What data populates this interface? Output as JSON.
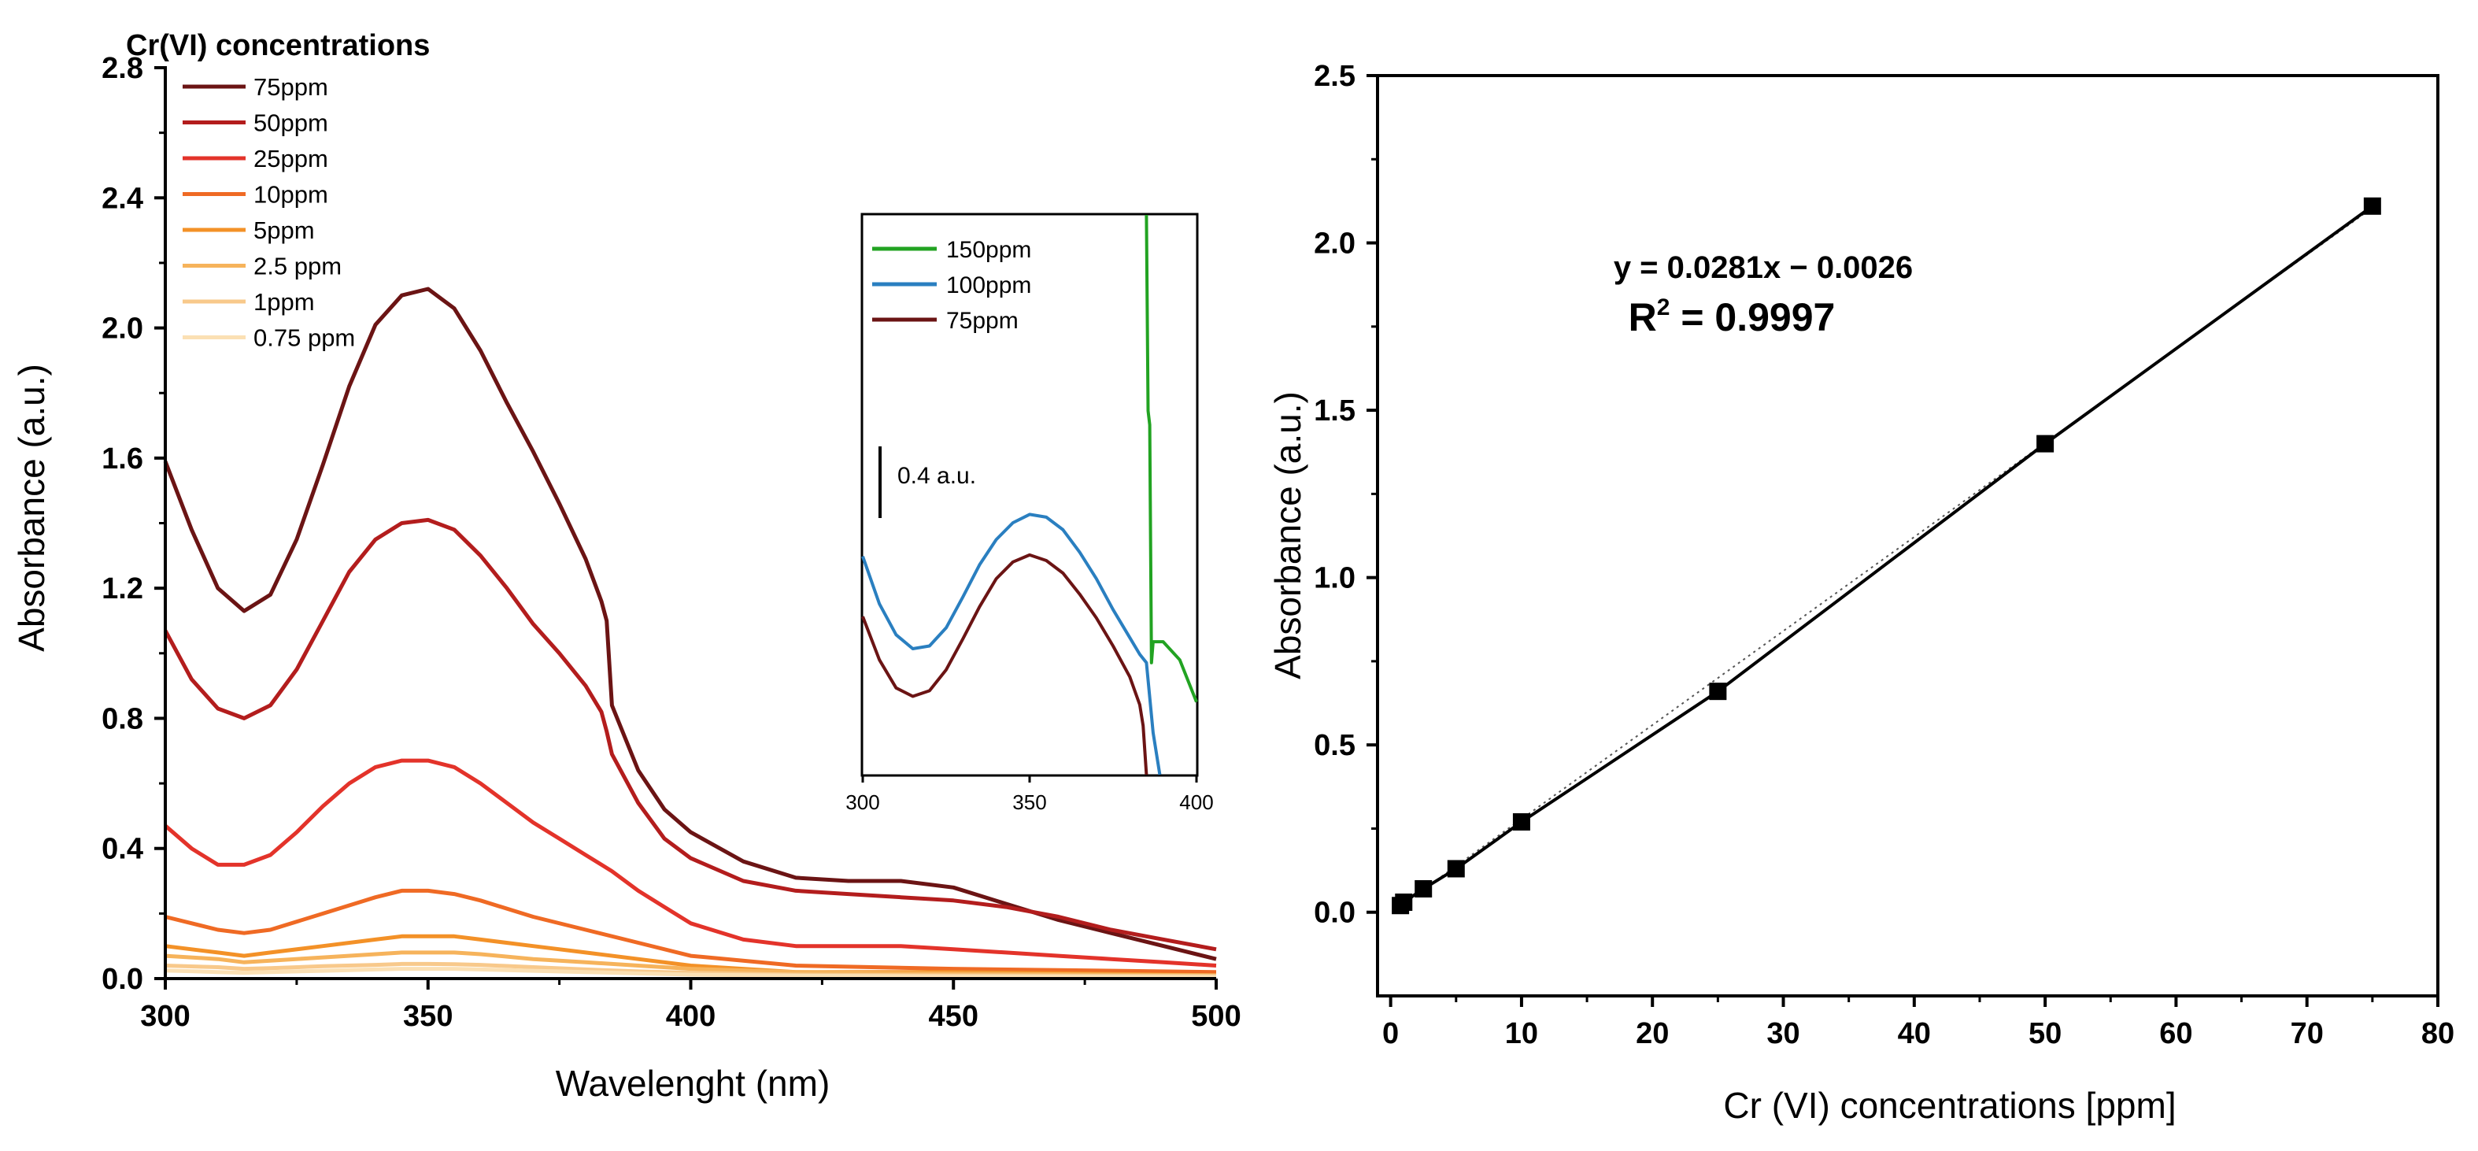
{
  "chart_data": [
    {
      "type": "line",
      "title": "",
      "xlabel": "Wavelenght (nm)",
      "ylabel": "Absorbance (a.u.)",
      "xlim": [
        300,
        500
      ],
      "ylim": [
        0.0,
        2.8
      ],
      "xticks": [
        300,
        350,
        400,
        450,
        500
      ],
      "xtick_labels": [
        "300",
        "350",
        "400",
        "450",
        "500"
      ],
      "yticks": [
        0.0,
        0.4,
        0.8,
        1.2,
        1.6,
        2.0,
        2.4,
        2.8
      ],
      "ytick_labels": [
        "0.0",
        "0.4",
        "0.8",
        "1.2",
        "1.6",
        "2.0",
        "2.4",
        "2.8"
      ],
      "legend_title": "Cr(VI) concentrations",
      "legend_position": "top-left",
      "series": [
        {
          "name": "75ppm",
          "color": "#6b1414",
          "x": [
            300,
            305,
            310,
            315,
            320,
            325,
            330,
            335,
            340,
            345,
            350,
            355,
            360,
            365,
            370,
            375,
            380,
            383,
            384,
            385,
            390,
            395,
            400,
            410,
            420,
            430,
            440,
            450,
            460,
            470,
            480,
            490,
            500
          ],
          "values": [
            1.59,
            1.38,
            1.2,
            1.13,
            1.18,
            1.35,
            1.58,
            1.82,
            2.01,
            2.1,
            2.12,
            2.06,
            1.93,
            1.77,
            1.62,
            1.46,
            1.29,
            1.16,
            1.1,
            0.84,
            0.64,
            0.52,
            0.45,
            0.36,
            0.31,
            0.3,
            0.3,
            0.28,
            0.23,
            0.18,
            0.14,
            0.1,
            0.06
          ]
        },
        {
          "name": "50ppm",
          "color": "#b31d1d",
          "x": [
            300,
            305,
            310,
            315,
            320,
            325,
            330,
            335,
            340,
            345,
            350,
            355,
            360,
            365,
            370,
            375,
            380,
            383,
            384,
            385,
            390,
            395,
            400,
            410,
            420,
            430,
            440,
            450,
            460,
            470,
            480,
            490,
            500
          ],
          "values": [
            1.07,
            0.92,
            0.83,
            0.8,
            0.84,
            0.95,
            1.1,
            1.25,
            1.35,
            1.4,
            1.41,
            1.38,
            1.3,
            1.2,
            1.09,
            1.0,
            0.9,
            0.82,
            0.76,
            0.69,
            0.54,
            0.43,
            0.37,
            0.3,
            0.27,
            0.26,
            0.25,
            0.24,
            0.22,
            0.19,
            0.15,
            0.12,
            0.09
          ]
        },
        {
          "name": "25ppm",
          "color": "#e3332a",
          "x": [
            300,
            305,
            310,
            315,
            320,
            325,
            330,
            335,
            340,
            345,
            350,
            355,
            360,
            365,
            370,
            375,
            380,
            385,
            390,
            395,
            400,
            410,
            420,
            430,
            440,
            450,
            460,
            470,
            480,
            490,
            500
          ],
          "values": [
            0.47,
            0.4,
            0.35,
            0.35,
            0.38,
            0.45,
            0.53,
            0.6,
            0.65,
            0.67,
            0.67,
            0.65,
            0.6,
            0.54,
            0.48,
            0.43,
            0.38,
            0.33,
            0.27,
            0.22,
            0.17,
            0.12,
            0.1,
            0.1,
            0.1,
            0.09,
            0.08,
            0.07,
            0.06,
            0.05,
            0.04
          ]
        },
        {
          "name": "10ppm",
          "color": "#ef6a24",
          "x": [
            300,
            310,
            315,
            320,
            330,
            340,
            345,
            350,
            355,
            360,
            370,
            380,
            390,
            400,
            420,
            450,
            500
          ],
          "values": [
            0.19,
            0.15,
            0.14,
            0.15,
            0.2,
            0.25,
            0.27,
            0.27,
            0.26,
            0.24,
            0.19,
            0.15,
            0.11,
            0.07,
            0.04,
            0.03,
            0.02
          ]
        },
        {
          "name": "5ppm",
          "color": "#f39127",
          "x": [
            300,
            310,
            315,
            320,
            330,
            340,
            345,
            350,
            355,
            360,
            370,
            380,
            390,
            400,
            420,
            450,
            500
          ],
          "values": [
            0.1,
            0.08,
            0.07,
            0.08,
            0.1,
            0.12,
            0.13,
            0.13,
            0.13,
            0.12,
            0.1,
            0.08,
            0.06,
            0.04,
            0.02,
            0.02,
            0.01
          ]
        },
        {
          "name": "2.5 ppm",
          "color": "#f6b35b",
          "x": [
            300,
            310,
            315,
            320,
            330,
            340,
            345,
            350,
            355,
            360,
            370,
            380,
            390,
            400,
            420,
            450,
            500
          ],
          "values": [
            0.07,
            0.06,
            0.05,
            0.055,
            0.065,
            0.075,
            0.08,
            0.08,
            0.08,
            0.075,
            0.06,
            0.05,
            0.04,
            0.03,
            0.02,
            0.015,
            0.01
          ]
        },
        {
          "name": "1ppm",
          "color": "#f8c98b",
          "x": [
            300,
            310,
            315,
            320,
            330,
            340,
            345,
            350,
            355,
            360,
            370,
            380,
            390,
            400,
            420,
            450,
            500
          ],
          "values": [
            0.04,
            0.035,
            0.03,
            0.032,
            0.038,
            0.042,
            0.045,
            0.045,
            0.044,
            0.042,
            0.035,
            0.028,
            0.022,
            0.018,
            0.012,
            0.01,
            0.008
          ]
        },
        {
          "name": "0.75 ppm",
          "color": "#fbe0b4",
          "x": [
            300,
            310,
            315,
            320,
            330,
            340,
            345,
            350,
            355,
            360,
            370,
            380,
            390,
            400,
            420,
            450,
            500
          ],
          "values": [
            0.025,
            0.02,
            0.018,
            0.02,
            0.024,
            0.028,
            0.03,
            0.03,
            0.03,
            0.028,
            0.024,
            0.02,
            0.016,
            0.012,
            0.009,
            0.007,
            0.005
          ]
        }
      ],
      "inset": {
        "type": "line",
        "xlim": [
          300,
          400
        ],
        "ylim": [
          0.0,
          4.0
        ],
        "xticks": [
          300,
          350,
          400
        ],
        "xtick_labels": [
          "300",
          "350",
          "400"
        ],
        "scale_bar_value": 0.4,
        "scale_bar_label": "0.4 a.u.",
        "series": [
          {
            "name": "150ppm",
            "color": "#22a322",
            "x": [
              385,
              385.5,
              386,
              386.5,
              387,
              390,
              395,
              400
            ],
            "values": [
              4.2,
              2.6,
              2.5,
              0.8,
              0.95,
              0.95,
              0.82,
              0.52
            ]
          },
          {
            "name": "100ppm",
            "color": "#2a7fc0",
            "x": [
              300,
              305,
              310,
              315,
              320,
              325,
              330,
              335,
              340,
              345,
              350,
              355,
              360,
              365,
              370,
              375,
              380,
              383,
              385,
              387,
              389
            ],
            "values": [
              1.56,
              1.22,
              1.0,
              0.9,
              0.92,
              1.05,
              1.27,
              1.5,
              1.68,
              1.8,
              1.86,
              1.84,
              1.75,
              1.59,
              1.4,
              1.18,
              0.98,
              0.86,
              0.8,
              0.3,
              0.0
            ]
          },
          {
            "name": "75ppm",
            "color": "#6b1414",
            "x": [
              300,
              305,
              310,
              315,
              320,
              325,
              330,
              335,
              340,
              345,
              350,
              355,
              360,
              365,
              370,
              375,
              380,
              383,
              384,
              385
            ],
            "values": [
              1.13,
              0.82,
              0.62,
              0.56,
              0.6,
              0.75,
              0.97,
              1.2,
              1.4,
              1.52,
              1.57,
              1.53,
              1.44,
              1.29,
              1.12,
              0.92,
              0.7,
              0.5,
              0.35,
              0.0
            ]
          }
        ]
      }
    },
    {
      "type": "scatter",
      "title": "",
      "xlabel": "Cr (VI) concentrations [ppm]",
      "ylabel": "Absorbance (a.u.)",
      "xlim": [
        -1,
        80
      ],
      "ylim": [
        -0.25,
        2.5
      ],
      "xticks": [
        0,
        10,
        20,
        30,
        40,
        50,
        60,
        70,
        80
      ],
      "xtick_labels": [
        "0",
        "10",
        "20",
        "30",
        "40",
        "50",
        "60",
        "70",
        "80"
      ],
      "yticks": [
        0.0,
        0.5,
        1.0,
        1.5,
        2.0,
        2.5
      ],
      "ytick_labels": [
        "0.0",
        "0.5",
        "1.0",
        "1.5",
        "2.0",
        "2.5"
      ],
      "series": [
        {
          "name": "data",
          "color": "#000000",
          "x": [
            0.75,
            1,
            2.5,
            5,
            10,
            25,
            50,
            75
          ],
          "values": [
            0.02,
            0.03,
            0.07,
            0.13,
            0.27,
            0.66,
            1.4,
            2.11
          ]
        }
      ],
      "fit": {
        "slope": 0.0281,
        "intercept": -0.0026
      },
      "equation_label": "y = 0.0281x − 0.0026",
      "r2_label": "R",
      "r2_exponent": "2",
      "r2_value": " = 0.9997"
    }
  ]
}
